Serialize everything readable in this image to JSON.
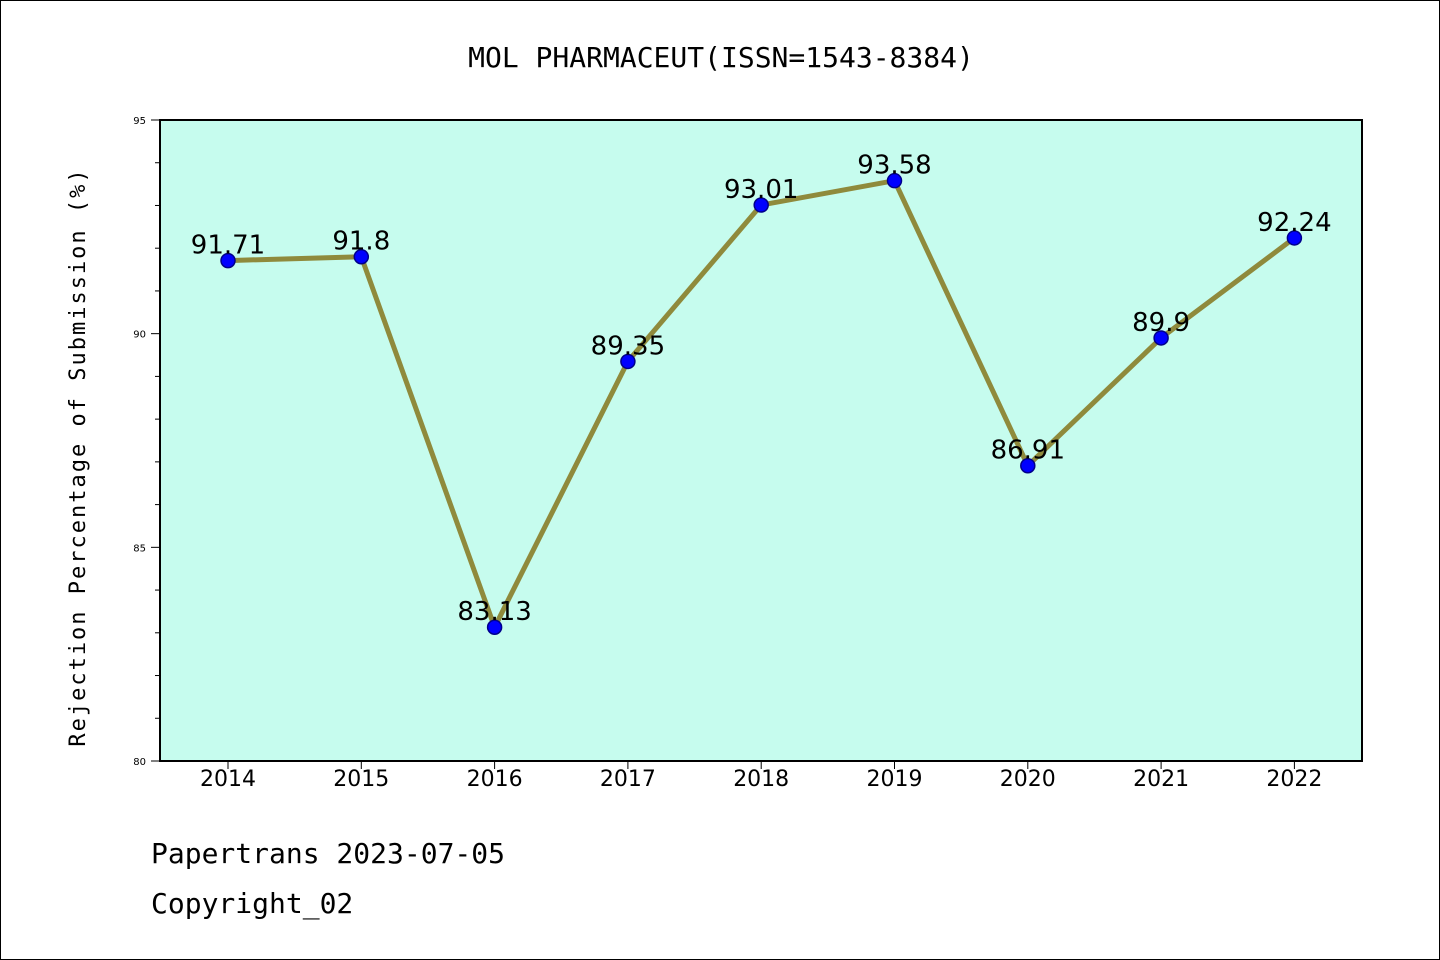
{
  "chart_data": {
    "type": "line",
    "title": "MOL PHARMACEUT(ISSN=1543-8384)",
    "xlabel": "",
    "ylabel": "Rejection Percentage of Submission (%)",
    "x": [
      "2014",
      "2015",
      "2016",
      "2017",
      "2018",
      "2019",
      "2020",
      "2021",
      "2022"
    ],
    "series": [
      {
        "values": [
          91.71,
          91.8,
          83.13,
          89.35,
          93.01,
          93.58,
          86.91,
          89.9,
          92.24
        ],
        "data_labels": [
          "91.71",
          "91.8",
          "83.13",
          "89.35",
          "93.01",
          "93.58",
          "86.91",
          "89.9",
          "92.24"
        ]
      }
    ],
    "ylim": [
      80,
      95
    ],
    "yticks": [
      "80",
      "85",
      "90",
      "95"
    ],
    "grid": false,
    "colors": {
      "plot_background": "#c6fcee",
      "line": "#8f8a3c",
      "marker": "#0000ff",
      "marker_edge": "#00008b"
    }
  },
  "footer": {
    "line1": "Papertrans 2023-07-05",
    "line2": "Copyright_02"
  }
}
